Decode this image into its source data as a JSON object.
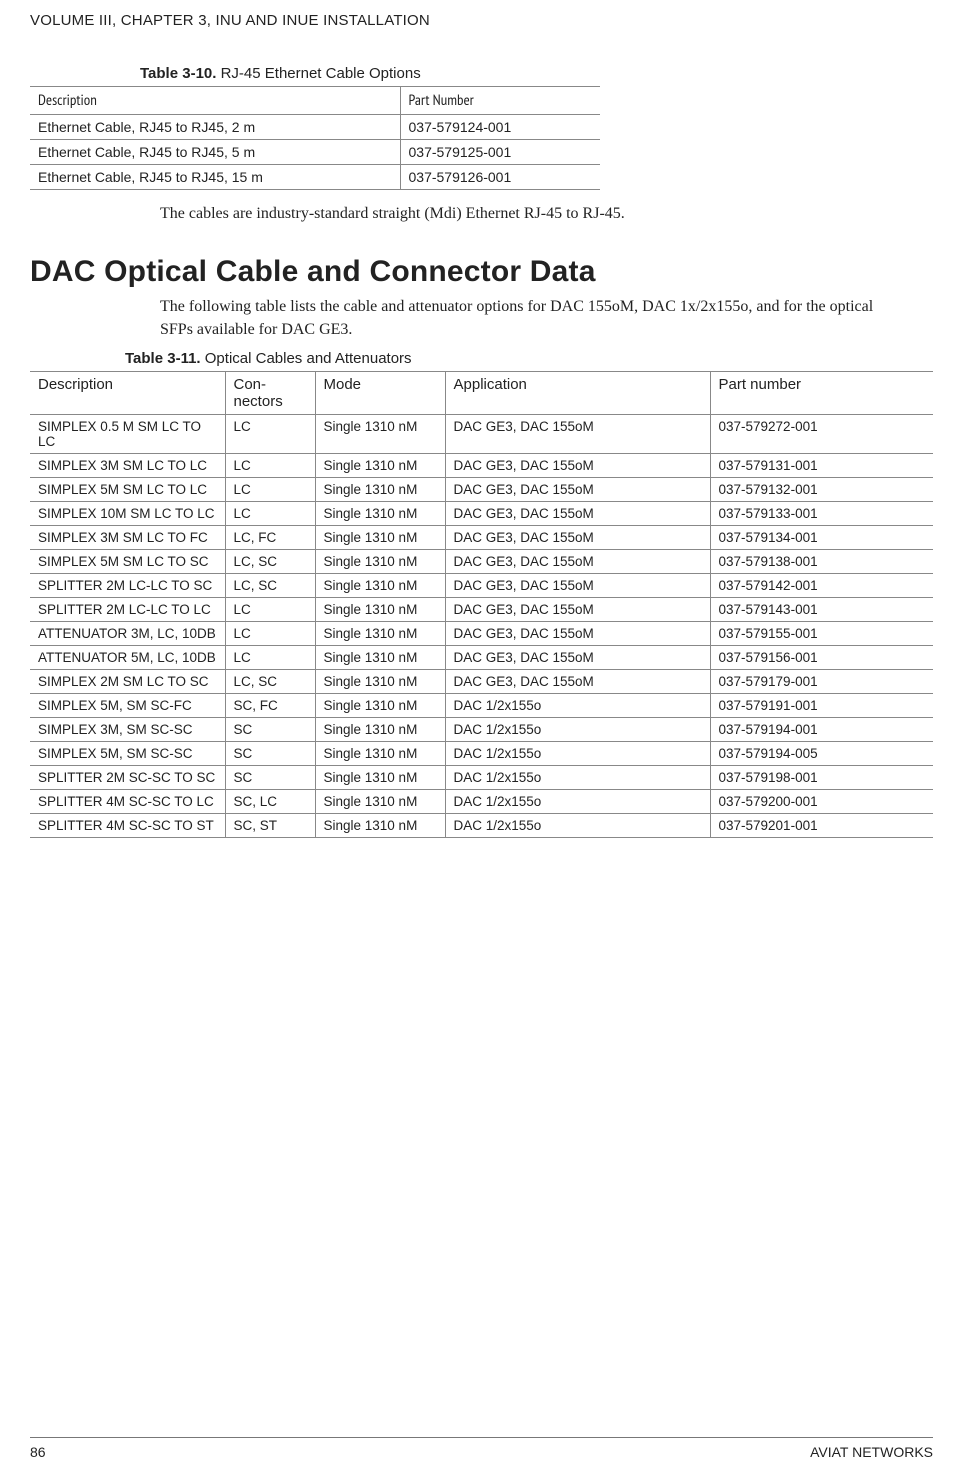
{
  "header": "VOLUME III, CHAPTER 3, INU AND INUE INSTALLATION",
  "table1": {
    "caption_bold": "Table 3-10.",
    "caption_rest": " RJ-45 Ethernet Cable Options",
    "columns": [
      "Description",
      "Part Number"
    ],
    "rows": [
      [
        "Ethernet Cable, RJ45 to RJ45, 2 m",
        "037-579124-001"
      ],
      [
        "Ethernet Cable, RJ45 to RJ45, 5 m",
        "037-579125-001"
      ],
      [
        "Ethernet Cable, RJ45 to RJ45, 15 m",
        "037-579126-001"
      ]
    ]
  },
  "para1": "The cables are industry-standard straight (Mdi) Ethernet RJ-45 to RJ-45.",
  "section_title": "DAC Optical Cable and Connector Data",
  "para2": "The following table lists the cable and attenuator options for DAC 155oM, DAC 1x/2x155o, and for the optical SFPs available for DAC GE3.",
  "table2": {
    "caption_bold": "Table 3-11.",
    "caption_rest": " Optical Cables and Attenuators",
    "columns": [
      "Description",
      "Con-\nnectors",
      "Mode",
      "Application",
      "Part number"
    ],
    "rows": [
      [
        "SIMPLEX 0.5 M SM LC TO LC",
        "LC",
        "Single 1310 nM",
        "DAC GE3, DAC 155oM",
        "037-579272-001"
      ],
      [
        "SIMPLEX 3M SM LC TO LC",
        "LC",
        "Single 1310 nM",
        "DAC GE3, DAC 155oM",
        "037-579131-001"
      ],
      [
        "SIMPLEX 5M SM LC TO LC",
        "LC",
        "Single 1310 nM",
        "DAC GE3, DAC 155oM",
        "037-579132-001"
      ],
      [
        "SIMPLEX 10M SM LC TO LC",
        "LC",
        "Single 1310 nM",
        "DAC GE3, DAC 155oM",
        "037-579133-001"
      ],
      [
        "SIMPLEX 3M SM LC TO FC",
        "LC, FC",
        "Single 1310 nM",
        "DAC GE3, DAC 155oM",
        "037-579134-001"
      ],
      [
        "SIMPLEX 5M SM LC TO SC",
        "LC, SC",
        "Single 1310 nM",
        "DAC GE3, DAC 155oM",
        "037-579138-001"
      ],
      [
        "SPLITTER 2M LC-LC TO SC",
        "LC, SC",
        "Single 1310 nM",
        "DAC GE3, DAC 155oM",
        "037-579142-001"
      ],
      [
        "SPLITTER 2M LC-LC TO LC",
        "LC",
        "Single 1310 nM",
        "DAC GE3, DAC 155oM",
        "037-579143-001"
      ],
      [
        "ATTENUATOR 3M, LC, 10DB",
        "LC",
        "Single 1310 nM",
        "DAC GE3, DAC 155oM",
        "037-579155-001"
      ],
      [
        "ATTENUATOR 5M, LC, 10DB",
        "LC",
        "Single 1310 nM",
        "DAC GE3, DAC 155oM",
        "037-579156-001"
      ],
      [
        "SIMPLEX 2M SM LC TO SC",
        "LC, SC",
        "Single 1310 nM",
        "DAC GE3, DAC 155oM",
        "037-579179-001"
      ],
      [
        "SIMPLEX 5M, SM SC-FC",
        "SC, FC",
        "Single 1310 nM",
        "DAC 1/2x155o",
        "037-579191-001"
      ],
      [
        "SIMPLEX 3M, SM SC-SC",
        "SC",
        "Single 1310 nM",
        "DAC 1/2x155o",
        "037-579194-001"
      ],
      [
        "SIMPLEX 5M, SM SC-SC",
        "SC",
        "Single 1310 nM",
        "DAC 1/2x155o",
        "037-579194-005"
      ],
      [
        "SPLITTER 2M SC-SC TO SC",
        "SC",
        "Single 1310 nM",
        "DAC 1/2x155o",
        "037-579198-001"
      ],
      [
        "SPLITTER 4M SC-SC TO LC",
        "SC, LC",
        "Single 1310 nM",
        "DAC 1/2x155o",
        "037-579200-001"
      ],
      [
        "SPLITTER 4M SC-SC TO ST",
        "SC, ST",
        "Single 1310 nM",
        "DAC 1/2x155o",
        "037-579201-001"
      ]
    ]
  },
  "footer": {
    "page": "86",
    "brand": "AVIAT NETWORKS"
  }
}
